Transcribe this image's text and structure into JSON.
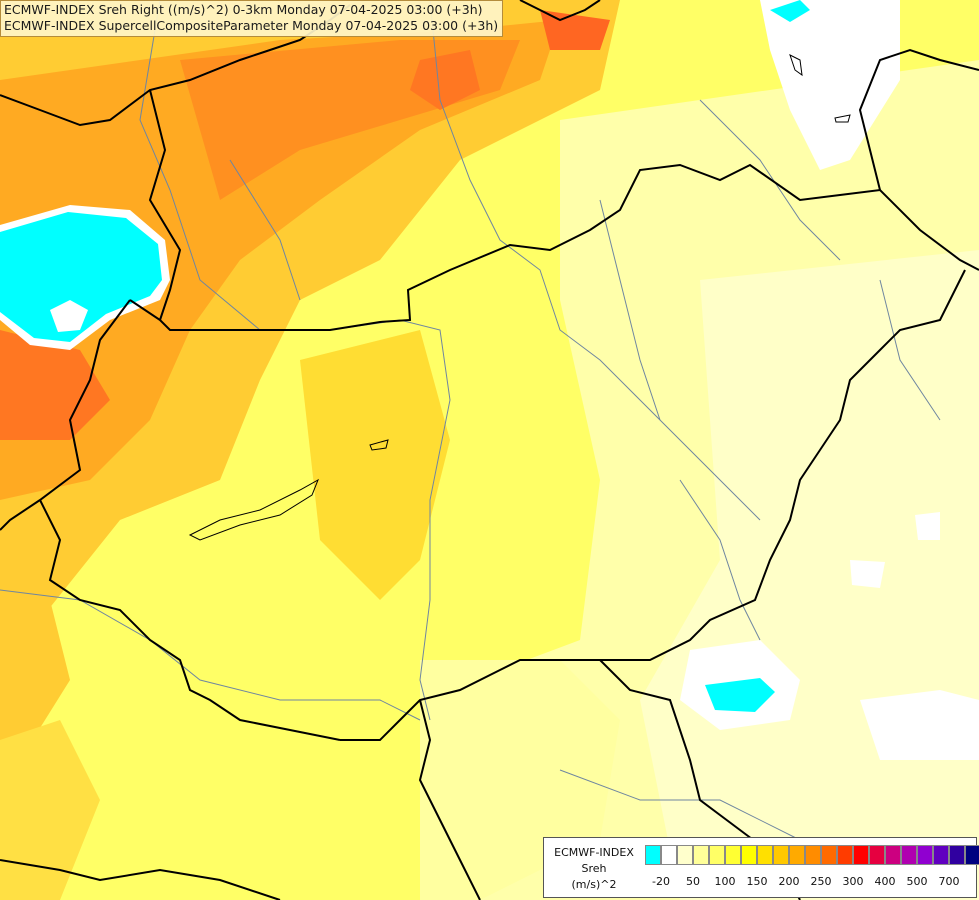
{
  "header": {
    "line1": "ECMWF-INDEX Sreh Right ((m/s)^2) 0-3km Monday 07-04-2025 03:00 (+3h)",
    "line2": "ECMWF-INDEX SupercellCompositeParameter Monday 07-04-2025 03:00 (+3h)"
  },
  "legend": {
    "title": "ECMWF-INDEX",
    "variable": "Sreh",
    "unit": "(m/s)^2",
    "colors": [
      "#00ffff",
      "#ffffff",
      "#ffffcc",
      "#ffff99",
      "#ffff66",
      "#ffff33",
      "#ffff00",
      "#ffe000",
      "#ffc800",
      "#ffaa00",
      "#ff8c00",
      "#ff6a00",
      "#ff3c00",
      "#ff0000",
      "#e60040",
      "#cc0080",
      "#b000b0",
      "#9000d0",
      "#6000c0",
      "#3000a0",
      "#000080"
    ],
    "ticks": [
      "-20",
      "50",
      "100",
      "150",
      "200",
      "250",
      "300",
      "400",
      "500",
      "700"
    ]
  }
}
